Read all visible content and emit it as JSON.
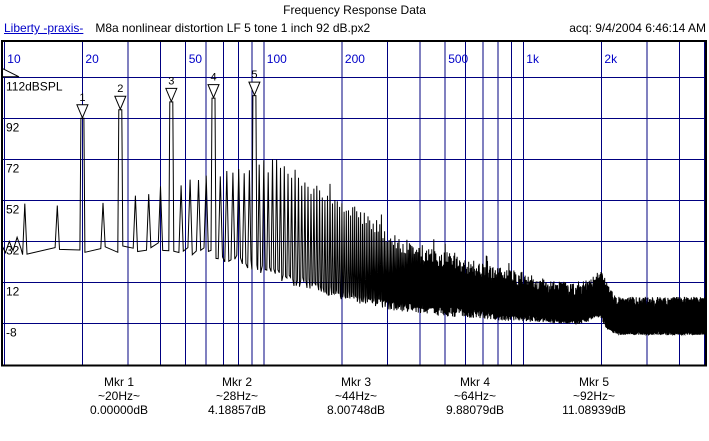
{
  "window": {
    "title": "Frequency Response Data"
  },
  "header": {
    "app_label": "Liberty -praxis-",
    "file_name": "M8a nonlinear distortion LF 5 tone 1 inch 92 dB.px2",
    "acquired": "acq: 9/4/2004 6:46:14 AM"
  },
  "colors": {
    "grid": "#000080",
    "freq_label": "#0000C8",
    "trace": "#000000",
    "frame": "#000000",
    "text": "#000000",
    "background": "#ffffff"
  },
  "chart_data": {
    "type": "line",
    "title": "Frequency Response Data",
    "description": "Acoustic spectrum: 5-tone nonlinear distortion measurement; 5 stimulus tones with dense 4 Hz spaced intermodulation comb decaying into noise floor with bump near 2 kHz",
    "x_axis": {
      "scale": "log",
      "unit": "Hz",
      "min": 9.8,
      "max": 5160,
      "gridlines": [
        10,
        20,
        30,
        40,
        50,
        60,
        70,
        80,
        90,
        100,
        200,
        300,
        400,
        500,
        600,
        700,
        800,
        900,
        1000,
        2000,
        3000,
        4000,
        5000
      ],
      "tick_labels": [
        {
          "f": 10,
          "label": "10"
        },
        {
          "f": 20,
          "label": "20"
        },
        {
          "f": 50,
          "label": "50"
        },
        {
          "f": 100,
          "label": "100"
        },
        {
          "f": 200,
          "label": "200"
        },
        {
          "f": 500,
          "label": "500"
        },
        {
          "f": 1000,
          "label": "1k"
        },
        {
          "f": 2000,
          "label": "2k"
        }
      ]
    },
    "y_axis": {
      "unit": "dBSPL",
      "grid_step_db": 20,
      "gridlines": [
        {
          "value": 112,
          "label": "112dBSPL"
        },
        {
          "value": 92,
          "label": "92"
        },
        {
          "value": 72,
          "label": "72"
        },
        {
          "value": 52,
          "label": "52"
        },
        {
          "value": 32,
          "label": "32"
        },
        {
          "value": 12,
          "label": "12"
        },
        {
          "value": -8,
          "label": "-8"
        }
      ]
    },
    "tones": [
      {
        "marker": "1",
        "freq_hz": 20,
        "db": 92.0
      },
      {
        "marker": "2",
        "freq_hz": 28,
        "db": 96.18857
      },
      {
        "marker": "3",
        "freq_hz": 44,
        "db": 100.00748
      },
      {
        "marker": "4",
        "freq_hz": 64,
        "db": 101.88079
      },
      {
        "marker": "5",
        "freq_hz": 92,
        "db": 103.08939
      }
    ],
    "comb_spacing_hz": 4,
    "envelope_top_db": [
      [
        12,
        48
      ],
      [
        16,
        50
      ],
      [
        24,
        52
      ],
      [
        32,
        55
      ],
      [
        40,
        57
      ],
      [
        52,
        60
      ],
      [
        60,
        62
      ],
      [
        72,
        65
      ],
      [
        84,
        67
      ],
      [
        100,
        69
      ],
      [
        115,
        68
      ],
      [
        130,
        64
      ],
      [
        150,
        58
      ],
      [
        175,
        52
      ],
      [
        200,
        48
      ],
      [
        240,
        44
      ],
      [
        280,
        38
      ],
      [
        330,
        31
      ],
      [
        400,
        27
      ],
      [
        500,
        23
      ],
      [
        600,
        20
      ],
      [
        700,
        18
      ],
      [
        850,
        15
      ],
      [
        1000,
        13
      ],
      [
        1200,
        10
      ],
      [
        1500,
        8
      ],
      [
        1750,
        9
      ],
      [
        1850,
        11
      ],
      [
        1950,
        14
      ],
      [
        2050,
        12
      ],
      [
        2150,
        5
      ],
      [
        2300,
        1
      ],
      [
        2600,
        1
      ],
      [
        5200,
        1
      ]
    ],
    "envelope_valley_db": [
      [
        12,
        28
      ],
      [
        20,
        28
      ],
      [
        44,
        29
      ],
      [
        64,
        26
      ],
      [
        80,
        23
      ],
      [
        100,
        18
      ],
      [
        130,
        13
      ],
      [
        160,
        10
      ],
      [
        200,
        6
      ],
      [
        250,
        3
      ],
      [
        300,
        1
      ],
      [
        500,
        -2
      ],
      [
        800,
        -4
      ],
      [
        1200,
        -5
      ],
      [
        1600,
        -6
      ],
      [
        1750,
        -5
      ],
      [
        1900,
        -2
      ],
      [
        2000,
        -3
      ],
      [
        2100,
        -8
      ],
      [
        2300,
        -11
      ],
      [
        2500,
        -11
      ],
      [
        5200,
        -11
      ]
    ],
    "pre_comb_points": [
      [
        9.8,
        30
      ],
      [
        10.1,
        26.5
      ],
      [
        10.45,
        32
      ],
      [
        10.8,
        27.5
      ],
      [
        11.2,
        34
      ],
      [
        11.6,
        28.5
      ]
    ],
    "noise_seed": 7
  },
  "markers_readout": [
    {
      "label": "Mkr 1",
      "freq": "~20Hz~",
      "value": "0.00000dB"
    },
    {
      "label": "Mkr 2",
      "freq": "~28Hz~",
      "value": "4.18857dB"
    },
    {
      "label": "Mkr 3",
      "freq": "~44Hz~",
      "value": "8.00748dB"
    },
    {
      "label": "Mkr 4",
      "freq": "~64Hz~",
      "value": "9.88079dB"
    },
    {
      "label": "Mkr 5",
      "freq": "~92Hz~",
      "value": "11.08939dB"
    }
  ]
}
